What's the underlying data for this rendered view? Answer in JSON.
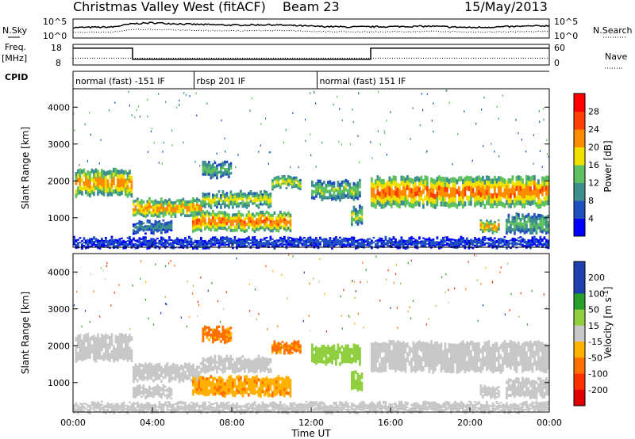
{
  "header": {
    "title": "Christmas Valley West (fitACF)",
    "beam": "Beam 23",
    "date": "15/May/2013"
  },
  "labels": {
    "nsky": "N.Sky",
    "nsearch": "N.Search",
    "freq_line1": "Freq.",
    "freq_line2": "[MHz]",
    "nave": "Nave",
    "cpid": "CPID",
    "noise_tick_hi": "10^5",
    "noise_tick_lo": "10^0",
    "freq_tick_hi": "18",
    "freq_tick_lo": "8",
    "nave_tick_hi": "60",
    "nave_tick_lo": "0"
  },
  "chart_data": [
    {
      "type": "line",
      "panel": "noise",
      "series": [
        {
          "name": "N.Sky",
          "style": "solid"
        },
        {
          "name": "N.Search",
          "style": "dotted"
        }
      ],
      "x": [
        0,
        2,
        3,
        4,
        6,
        8,
        10,
        12,
        14,
        16,
        18,
        20,
        22,
        24
      ],
      "y_level_fraction_sky": [
        0.55,
        0.58,
        0.75,
        0.8,
        0.72,
        0.68,
        0.7,
        0.62,
        0.58,
        0.6,
        0.62,
        0.55,
        0.6,
        0.65
      ],
      "y_level_fraction_search": [
        0.3,
        0.32,
        0.45,
        0.45,
        0.4,
        0.38,
        0.4,
        0.35,
        0.33,
        0.33,
        0.35,
        0.32,
        0.33,
        0.35
      ]
    },
    {
      "type": "line",
      "panel": "frequency",
      "series": [
        {
          "name": "Freq.",
          "style": "solid",
          "segments": [
            {
              "from": 0,
              "to": 3,
              "mhz": 16.2
            },
            {
              "from": 3,
              "to": 15,
              "mhz": 10.8
            },
            {
              "from": 15,
              "to": 24,
              "mhz": 16.2
            }
          ]
        },
        {
          "name": "Nave",
          "style": "dotted",
          "value": 20
        }
      ],
      "ylim": [
        8,
        18
      ],
      "ylim_right": [
        0,
        60
      ]
    },
    {
      "type": "table",
      "panel": "cpid",
      "segments": [
        {
          "from": 0,
          "to": 6.1,
          "label": "normal (fast) -151 IF"
        },
        {
          "from": 6.1,
          "to": 12.3,
          "label": "rbsp 201 IF"
        },
        {
          "from": 12.3,
          "to": 24,
          "label": "normal (fast) 151 IF"
        }
      ]
    },
    {
      "type": "heatmap",
      "panel": "power",
      "ylabel": "Slant Range [km]",
      "ylim": [
        200,
        4500
      ],
      "yticks": [
        "1000",
        "2000",
        "3000",
        "4000"
      ],
      "colorbar": {
        "label": "Power [dB]",
        "ticks": [
          "4",
          "8",
          "12",
          "16",
          "20",
          "24",
          "28"
        ]
      },
      "bands": [
        {
          "t0": 0.1,
          "t1": 3.0,
          "r0": 1600,
          "r1": 2300,
          "p": 22
        },
        {
          "t0": 3.0,
          "t1": 6.5,
          "r0": 1050,
          "r1": 1500,
          "p": 22
        },
        {
          "t0": 6.5,
          "t1": 10.0,
          "r0": 1300,
          "r1": 1700,
          "p": 18
        },
        {
          "t0": 3.0,
          "t1": 5.0,
          "r0": 600,
          "r1": 900,
          "p": 10
        },
        {
          "t0": 6.0,
          "t1": 11.0,
          "r0": 650,
          "r1": 1150,
          "p": 24
        },
        {
          "t0": 6.5,
          "t1": 8.0,
          "r0": 2100,
          "r1": 2500,
          "p": 14
        },
        {
          "t0": 10.0,
          "t1": 11.5,
          "r0": 1800,
          "r1": 2100,
          "p": 18
        },
        {
          "t0": 12.0,
          "t1": 14.5,
          "r0": 1500,
          "r1": 2000,
          "p": 15
        },
        {
          "t0": 14.0,
          "t1": 14.6,
          "r0": 800,
          "r1": 1300,
          "p": 16
        },
        {
          "t0": 15.0,
          "t1": 24.0,
          "r0": 1300,
          "r1": 2100,
          "p": 24
        },
        {
          "t0": 20.5,
          "t1": 21.5,
          "r0": 600,
          "r1": 900,
          "p": 22
        },
        {
          "t0": 21.8,
          "t1": 24.0,
          "r0": 600,
          "r1": 1100,
          "p": 14
        },
        {
          "t0": 0,
          "t1": 24,
          "r0": 200,
          "r1": 450,
          "p": 6
        }
      ]
    },
    {
      "type": "heatmap",
      "panel": "velocity",
      "xlabel": "Time UT",
      "ylabel": "Slant Range [km]",
      "ylim": [
        200,
        4500
      ],
      "yticks": [
        "1000",
        "2000",
        "3000",
        "4000"
      ],
      "xticks": [
        "00:00",
        "04:00",
        "08:00",
        "12:00",
        "16:00",
        "20:00",
        "00:00"
      ],
      "colorbar": {
        "label": "Velocity [m s^-1]",
        "ticks": [
          "200",
          "100",
          "50",
          "15",
          "-15",
          "-50",
          "-100",
          "-200"
        ]
      },
      "bands": [
        {
          "t0": 0.1,
          "t1": 3.0,
          "r0": 1600,
          "r1": 2300,
          "v": 0
        },
        {
          "t0": 3.0,
          "t1": 6.5,
          "r0": 1050,
          "r1": 1500,
          "v": 0
        },
        {
          "t0": 6.5,
          "t1": 10.0,
          "r0": 1300,
          "r1": 1700,
          "v": 0
        },
        {
          "t0": 3.0,
          "t1": 5.0,
          "r0": 600,
          "r1": 900,
          "v": 0
        },
        {
          "t0": 6.0,
          "t1": 11.0,
          "r0": 650,
          "r1": 1150,
          "v": -40
        },
        {
          "t0": 6.5,
          "t1": 8.0,
          "r0": 2100,
          "r1": 2500,
          "v": -60
        },
        {
          "t0": 10.0,
          "t1": 11.5,
          "r0": 1800,
          "r1": 2100,
          "v": -60
        },
        {
          "t0": 12.0,
          "t1": 14.5,
          "r0": 1500,
          "r1": 2000,
          "v": 40
        },
        {
          "t0": 14.0,
          "t1": 14.6,
          "r0": 800,
          "r1": 1300,
          "v": 40
        },
        {
          "t0": 15.0,
          "t1": 24.0,
          "r0": 1300,
          "r1": 2100,
          "v": 0
        },
        {
          "t0": 20.5,
          "t1": 21.5,
          "r0": 600,
          "r1": 900,
          "v": 0
        },
        {
          "t0": 21.8,
          "t1": 24.0,
          "r0": 600,
          "r1": 1100,
          "v": 0
        },
        {
          "t0": 0,
          "t1": 24,
          "r0": 200,
          "r1": 450,
          "v": 0
        }
      ]
    }
  ],
  "colors": {
    "power": [
      "#0000ff",
      "#2050c0",
      "#3f8f8f",
      "#5fc05f",
      "#f0e000",
      "#ff8c00",
      "#ff4000",
      "#ff0000"
    ],
    "velocity_pos": [
      "#2040b0",
      "#2aa02a",
      "#90d040"
    ],
    "velocity_zero": "#c8c8c8",
    "velocity_neg": [
      "#ffb000",
      "#ff7000",
      "#ff3000",
      "#e00000"
    ]
  }
}
